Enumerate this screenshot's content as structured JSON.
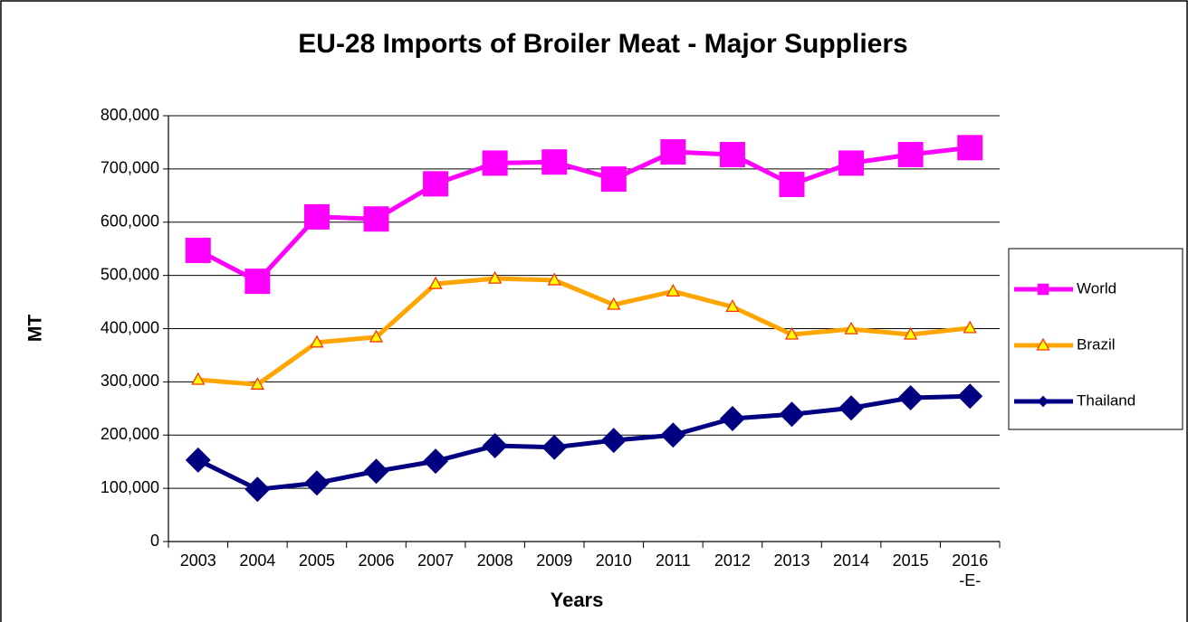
{
  "chart_data": {
    "type": "line",
    "title": "EU-28 Imports of Broiler Meat - Major Suppliers",
    "y_label": "MT",
    "x_label": "Years",
    "categories": [
      "2003",
      "2004",
      "2005",
      "2006",
      "2007",
      "2008",
      "2009",
      "2010",
      "2011",
      "2012",
      "2013",
      "2014",
      "2015",
      "2016\n-E-"
    ],
    "series": [
      {
        "name": "World",
        "color": "#ff00ff",
        "marker": "square",
        "values": [
          547000,
          489000,
          610000,
          606000,
          672000,
          711000,
          713000,
          681000,
          732000,
          727000,
          671000,
          711000,
          727000,
          740000
        ]
      },
      {
        "name": "Brazil",
        "color": "#ffa500",
        "marker": "triangle",
        "values": [
          304000,
          295000,
          374000,
          384000,
          484000,
          494000,
          491000,
          445000,
          470000,
          441000,
          389000,
          399000,
          389000,
          401000
        ]
      },
      {
        "name": "Thailand",
        "color": "#000080",
        "marker": "diamond",
        "values": [
          153000,
          98000,
          110000,
          132000,
          151000,
          180000,
          177000,
          190000,
          200000,
          231000,
          239000,
          251000,
          270000,
          273000
        ]
      }
    ],
    "ylim": [
      0,
      800000
    ],
    "yticks": [
      0,
      {
        "value": 100000,
        "label": "100,000"
      },
      {
        "value": 200000,
        "label": "200,000"
      },
      {
        "value": 300000,
        "label": "300,000"
      },
      {
        "value": 400000,
        "label": "400,000"
      },
      {
        "value": 500000,
        "label": "500,000"
      },
      {
        "value": 600000,
        "label": "600,000"
      },
      {
        "value": 700000,
        "label": "700,000"
      },
      {
        "value": 800000,
        "label": "800,000"
      }
    ],
    "grid": true,
    "legend": "right"
  }
}
